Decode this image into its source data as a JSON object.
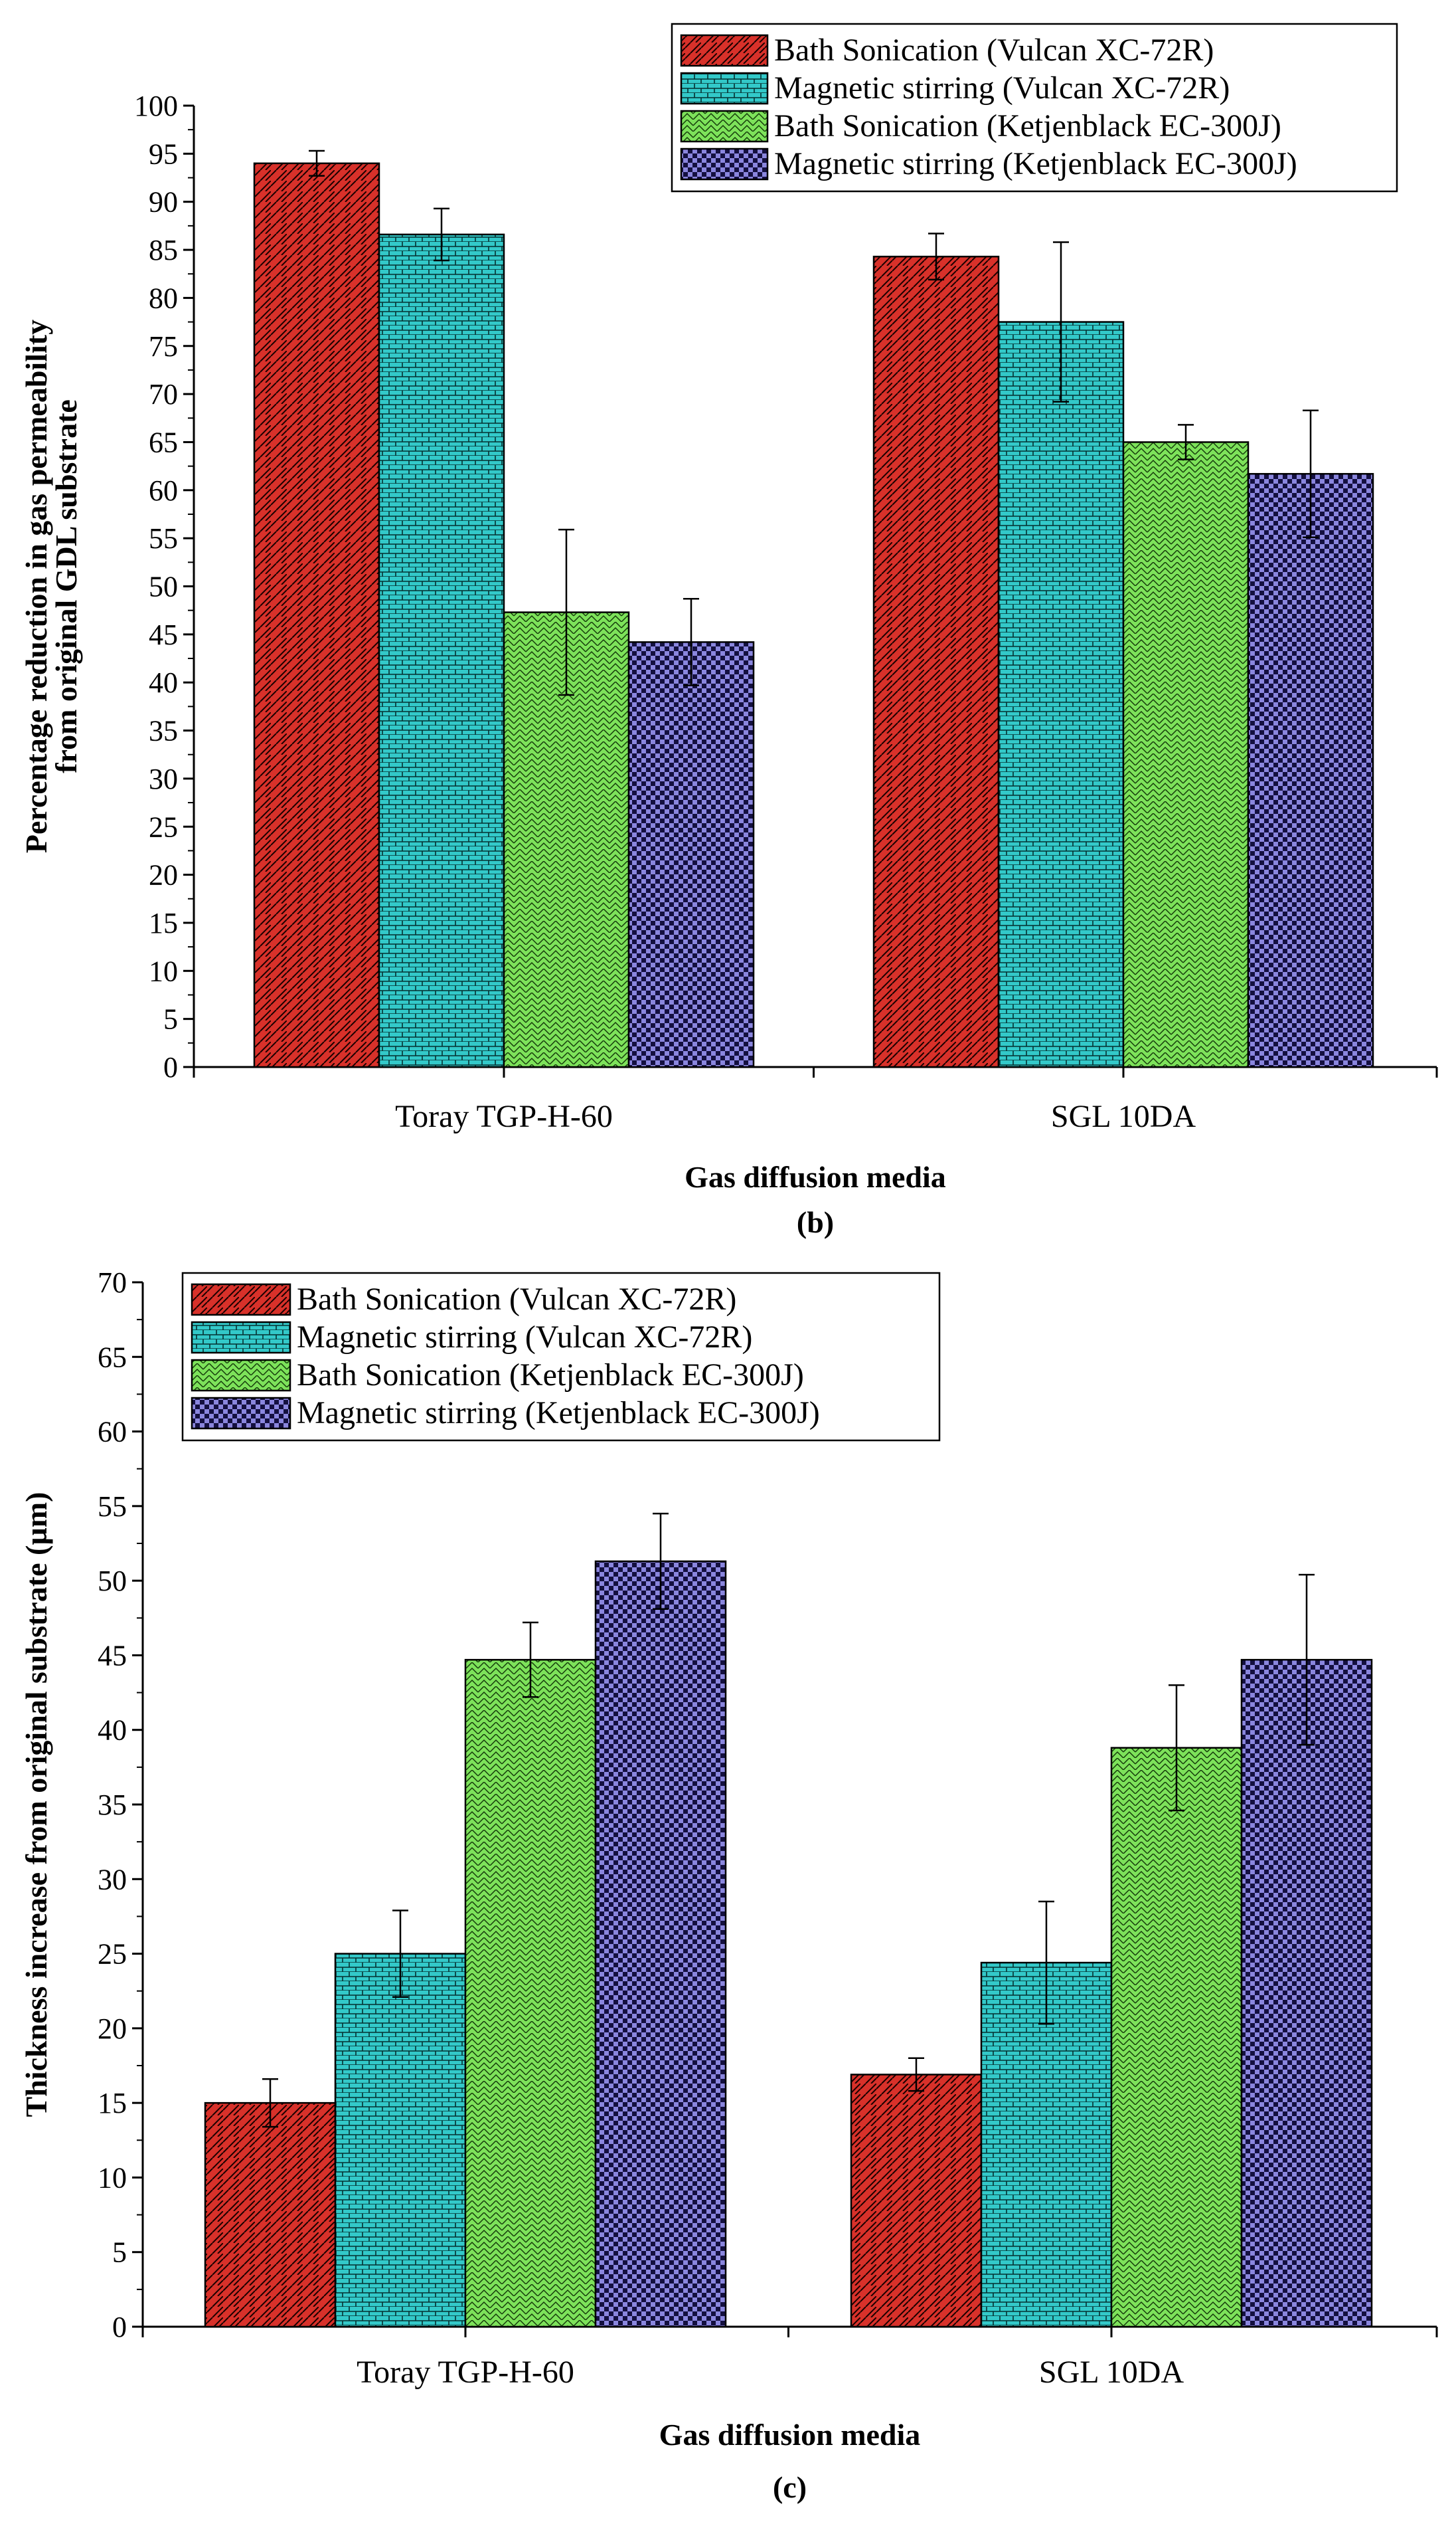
{
  "colors": {
    "bath_vulcan": "#d8312a",
    "mag_vulcan": "#33c9c9",
    "bath_ketjen": "#7de25a",
    "mag_ketjen": "#8a86de"
  },
  "chart_data": [
    {
      "type": "bar",
      "panel_label": "(b)",
      "title": "",
      "xlabel": "Gas diffusion media",
      "ylabel_line1": "Percentage reduction in gas permeability",
      "ylabel_line2": "from original GDL substrate",
      "ylim": [
        0,
        100
      ],
      "ytick_step": 5,
      "ytick_labels": [
        "0",
        "5",
        "10",
        "15",
        "20",
        "25",
        "30",
        "35",
        "40",
        "45",
        "50",
        "55",
        "60",
        "65",
        "70",
        "75",
        "80",
        "85",
        "90",
        "95",
        "100"
      ],
      "legend_position": "top-right",
      "categories": [
        "Toray TGP-H-60",
        "SGL 10DA"
      ],
      "series": [
        {
          "name": "Bath Sonication (Vulcan XC-72R)",
          "values": [
            94.0,
            84.3
          ],
          "errors": [
            1.3,
            2.4
          ]
        },
        {
          "name": "Magnetic stirring (Vulcan XC-72R)",
          "values": [
            86.6,
            77.5
          ],
          "errors": [
            2.7,
            8.3
          ]
        },
        {
          "name": "Bath Sonication (Ketjenblack EC-300J)",
          "values": [
            47.3,
            65.0
          ],
          "errors": [
            8.6,
            1.8
          ]
        },
        {
          "name": "Magnetic stirring (Ketjenblack EC-300J)",
          "values": [
            44.2,
            61.7
          ],
          "errors": [
            4.5,
            6.6
          ]
        }
      ]
    },
    {
      "type": "bar",
      "panel_label": "(c)",
      "title": "",
      "xlabel": "Gas diffusion media",
      "ylabel_line1": "Thickness increase from original substrate (µm)",
      "ylabel_line2": "",
      "ylim": [
        0,
        70
      ],
      "ytick_step": 5,
      "ytick_labels": [
        "0",
        "5",
        "10",
        "15",
        "20",
        "25",
        "30",
        "35",
        "40",
        "45",
        "50",
        "55",
        "60",
        "65",
        "70"
      ],
      "legend_position": "top-left",
      "categories": [
        "Toray TGP-H-60",
        "SGL 10DA"
      ],
      "series": [
        {
          "name": "Bath Sonication (Vulcan XC-72R)",
          "values": [
            15.0,
            16.9
          ],
          "errors": [
            1.6,
            1.1
          ]
        },
        {
          "name": "Magnetic stirring (Vulcan XC-72R)",
          "values": [
            25.0,
            24.4
          ],
          "errors": [
            2.9,
            4.1
          ]
        },
        {
          "name": "Bath Sonication (Ketjenblack EC-300J)",
          "values": [
            44.7,
            38.8
          ],
          "errors": [
            2.5,
            4.2
          ]
        },
        {
          "name": "Magnetic stirring (Ketjenblack EC-300J)",
          "values": [
            51.3,
            44.7
          ],
          "errors": [
            3.2,
            5.7
          ]
        }
      ]
    }
  ]
}
